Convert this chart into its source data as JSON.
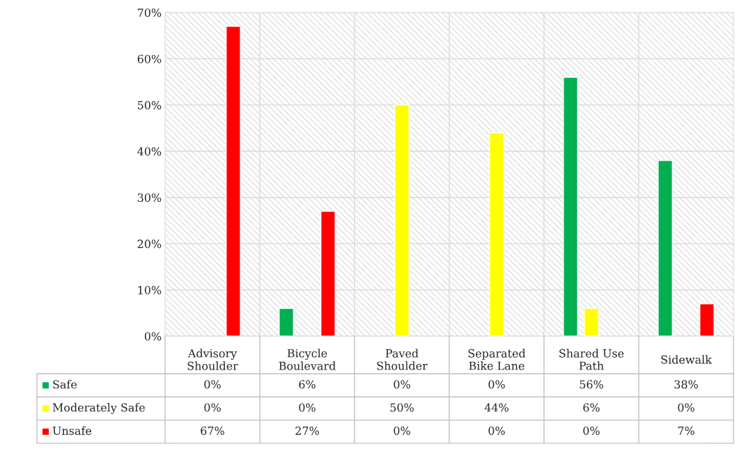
{
  "chart_data": {
    "type": "bar",
    "categories": [
      "Advisory\nShoulder",
      "Bicycle\nBoulevard",
      "Paved\nShoulder",
      "Separated\nBike Lane",
      "Shared Use\nPath",
      "Sidewalk"
    ],
    "series": [
      {
        "name": "Safe",
        "color": "#00b050",
        "values": [
          0,
          6,
          0,
          0,
          56,
          38
        ],
        "value_labels": [
          "0%",
          "6%",
          "0%",
          "0%",
          "56%",
          "38%"
        ]
      },
      {
        "name": "Moderately Safe",
        "color": "#ffff00",
        "values": [
          0,
          0,
          50,
          44,
          6,
          0
        ],
        "value_labels": [
          "0%",
          "0%",
          "50%",
          "44%",
          "6%",
          "0%"
        ]
      },
      {
        "name": "Unsafe",
        "color": "#ff0000",
        "values": [
          67,
          27,
          0,
          0,
          0,
          7
        ],
        "value_labels": [
          "67%",
          "27%",
          "0%",
          "0%",
          "0%",
          "7%"
        ]
      }
    ],
    "ylim": [
      0,
      70
    ],
    "yticks": [
      {
        "value": 0,
        "label": "0%"
      },
      {
        "value": 10,
        "label": "10%"
      },
      {
        "value": 20,
        "label": "20%"
      },
      {
        "value": 30,
        "label": "30%"
      },
      {
        "value": 40,
        "label": "40%"
      },
      {
        "value": 50,
        "label": "50%"
      },
      {
        "value": 60,
        "label": "60%"
      },
      {
        "value": 70,
        "label": "70%"
      }
    ],
    "grid": "y",
    "legend": "bottom"
  }
}
